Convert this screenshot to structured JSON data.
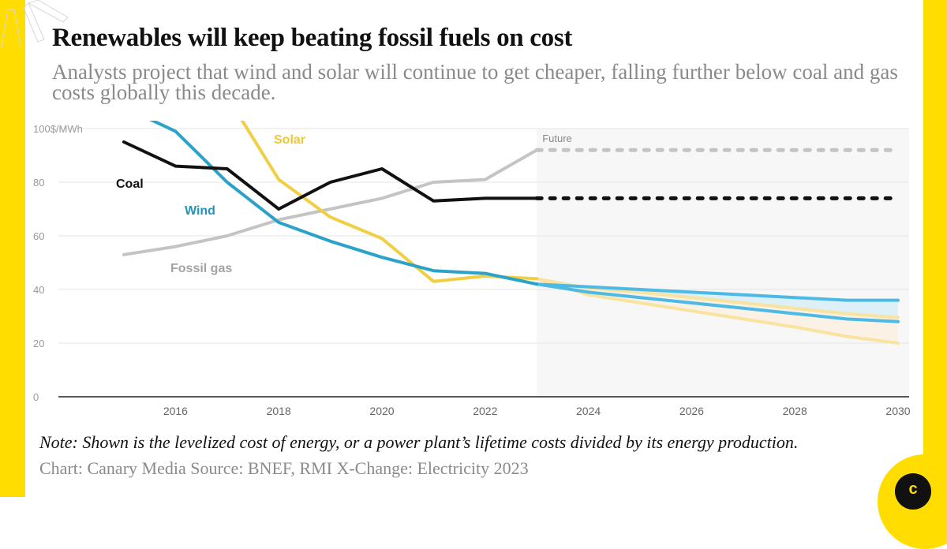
{
  "header": {
    "title": "Renewables will keep beating fossil fuels on cost",
    "subtitle": "Analysts project that wind and solar will continue to get cheaper, falling further below coal and gas costs globally this decade."
  },
  "footer": {
    "note": "Note: Shown is the levelized cost of energy, or a power plant’s lifetime costs divided by its energy production.",
    "source": "Chart: Canary Media Source: BNEF, RMI X-Change: Electricity 2023",
    "logo_letter": "c"
  },
  "colors": {
    "brand_yellow": "#FFDD00",
    "coal": "#111111",
    "gas": "#C4C4C4",
    "wind": "#2BA3C8",
    "wind_forecast": "#4DBAE6",
    "solar": "#F1CF45",
    "solar_forecast": "#F9E3A0"
  },
  "chart_data": {
    "type": "line",
    "title": "Renewables will keep beating fossil fuels on cost",
    "xlabel": "",
    "ylabel": "$/MWh",
    "y_unit_label": "$/MWh",
    "ylim": [
      0,
      100
    ],
    "xlim": [
      2014,
      2030.2
    ],
    "y_ticks": [
      0,
      20,
      40,
      60,
      80,
      100
    ],
    "y_tick_labels": [
      "0",
      "20",
      "40",
      "60",
      "80",
      "100$/MWh"
    ],
    "x_ticks": [
      2016,
      2018,
      2020,
      2022,
      2024,
      2026,
      2028,
      2030
    ],
    "x_tick_labels": [
      "2016",
      "2018",
      "2020",
      "2022",
      "2024",
      "2026",
      "2028",
      "2030"
    ],
    "grid": true,
    "future_region": {
      "start": 2023,
      "label": "Future"
    },
    "series": [
      {
        "name": "Coal",
        "label": "Coal",
        "x": [
          2015,
          2016,
          2017,
          2018,
          2019,
          2020,
          2021,
          2022,
          2023
        ],
        "values": [
          95,
          86,
          85,
          70,
          80,
          85,
          73,
          74,
          74
        ],
        "projection": {
          "x": [
            2023,
            2030
          ],
          "values": [
            74,
            74
          ],
          "style": "dashed"
        }
      },
      {
        "name": "Fossil gas",
        "label": "Fossil gas",
        "x": [
          2015,
          2016,
          2017,
          2018,
          2019,
          2020,
          2021,
          2022,
          2023
        ],
        "values": [
          53,
          56,
          60,
          66,
          70,
          74,
          80,
          81,
          92
        ],
        "projection": {
          "x": [
            2023,
            2030
          ],
          "values": [
            92,
            92
          ],
          "style": "dashed"
        }
      },
      {
        "name": "Wind",
        "label": "Wind",
        "x": [
          2015,
          2016,
          2017,
          2018,
          2019,
          2020,
          2021,
          2022,
          2023
        ],
        "values": [
          108,
          99,
          80,
          65,
          58,
          52,
          47,
          46,
          42
        ],
        "projection_range": {
          "x": [
            2023,
            2024,
            2025,
            2026,
            2027,
            2028,
            2029,
            2030
          ],
          "high": [
            42,
            41,
            40,
            39,
            38,
            37,
            36,
            36
          ],
          "low": [
            42,
            39,
            37,
            35,
            33,
            31,
            29,
            28
          ]
        }
      },
      {
        "name": "Solar",
        "label": "Solar",
        "x": [
          2017,
          2018,
          2019,
          2020,
          2021,
          2022,
          2023
        ],
        "values": [
          112,
          81,
          67,
          59,
          43,
          45,
          44
        ],
        "projection_range": {
          "x": [
            2023,
            2024,
            2025,
            2026,
            2027,
            2028,
            2029,
            2030
          ],
          "high": [
            44,
            40.5,
            39,
            37,
            35,
            33,
            31,
            29.5
          ],
          "low": [
            44,
            38,
            35,
            32,
            29,
            26,
            22.5,
            20
          ]
        }
      }
    ]
  }
}
